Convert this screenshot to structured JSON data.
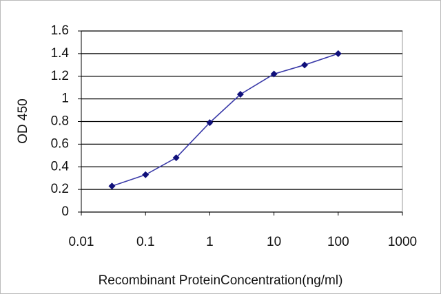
{
  "chart_data": {
    "type": "line",
    "x_label": "Recombinant ProteinConcentration(ng/ml)",
    "y_label": "OD 450",
    "x": [
      0.03,
      0.1,
      0.3,
      1,
      3,
      10,
      30,
      100
    ],
    "values": [
      0.23,
      0.33,
      0.48,
      0.79,
      1.04,
      1.22,
      1.3,
      1.4
    ],
    "color": "#3a3aa8",
    "marker_color": "#10107a",
    "xscale": "log",
    "xlim": [
      0.01,
      1000
    ],
    "xticks": [
      0.01,
      0.1,
      1,
      10,
      100,
      1000
    ],
    "ylim": [
      0,
      1.6
    ],
    "yticks": [
      0,
      0.2,
      0.4,
      0.6,
      0.8,
      1,
      1.2,
      1.4,
      1.6
    ],
    "grid": true
  }
}
